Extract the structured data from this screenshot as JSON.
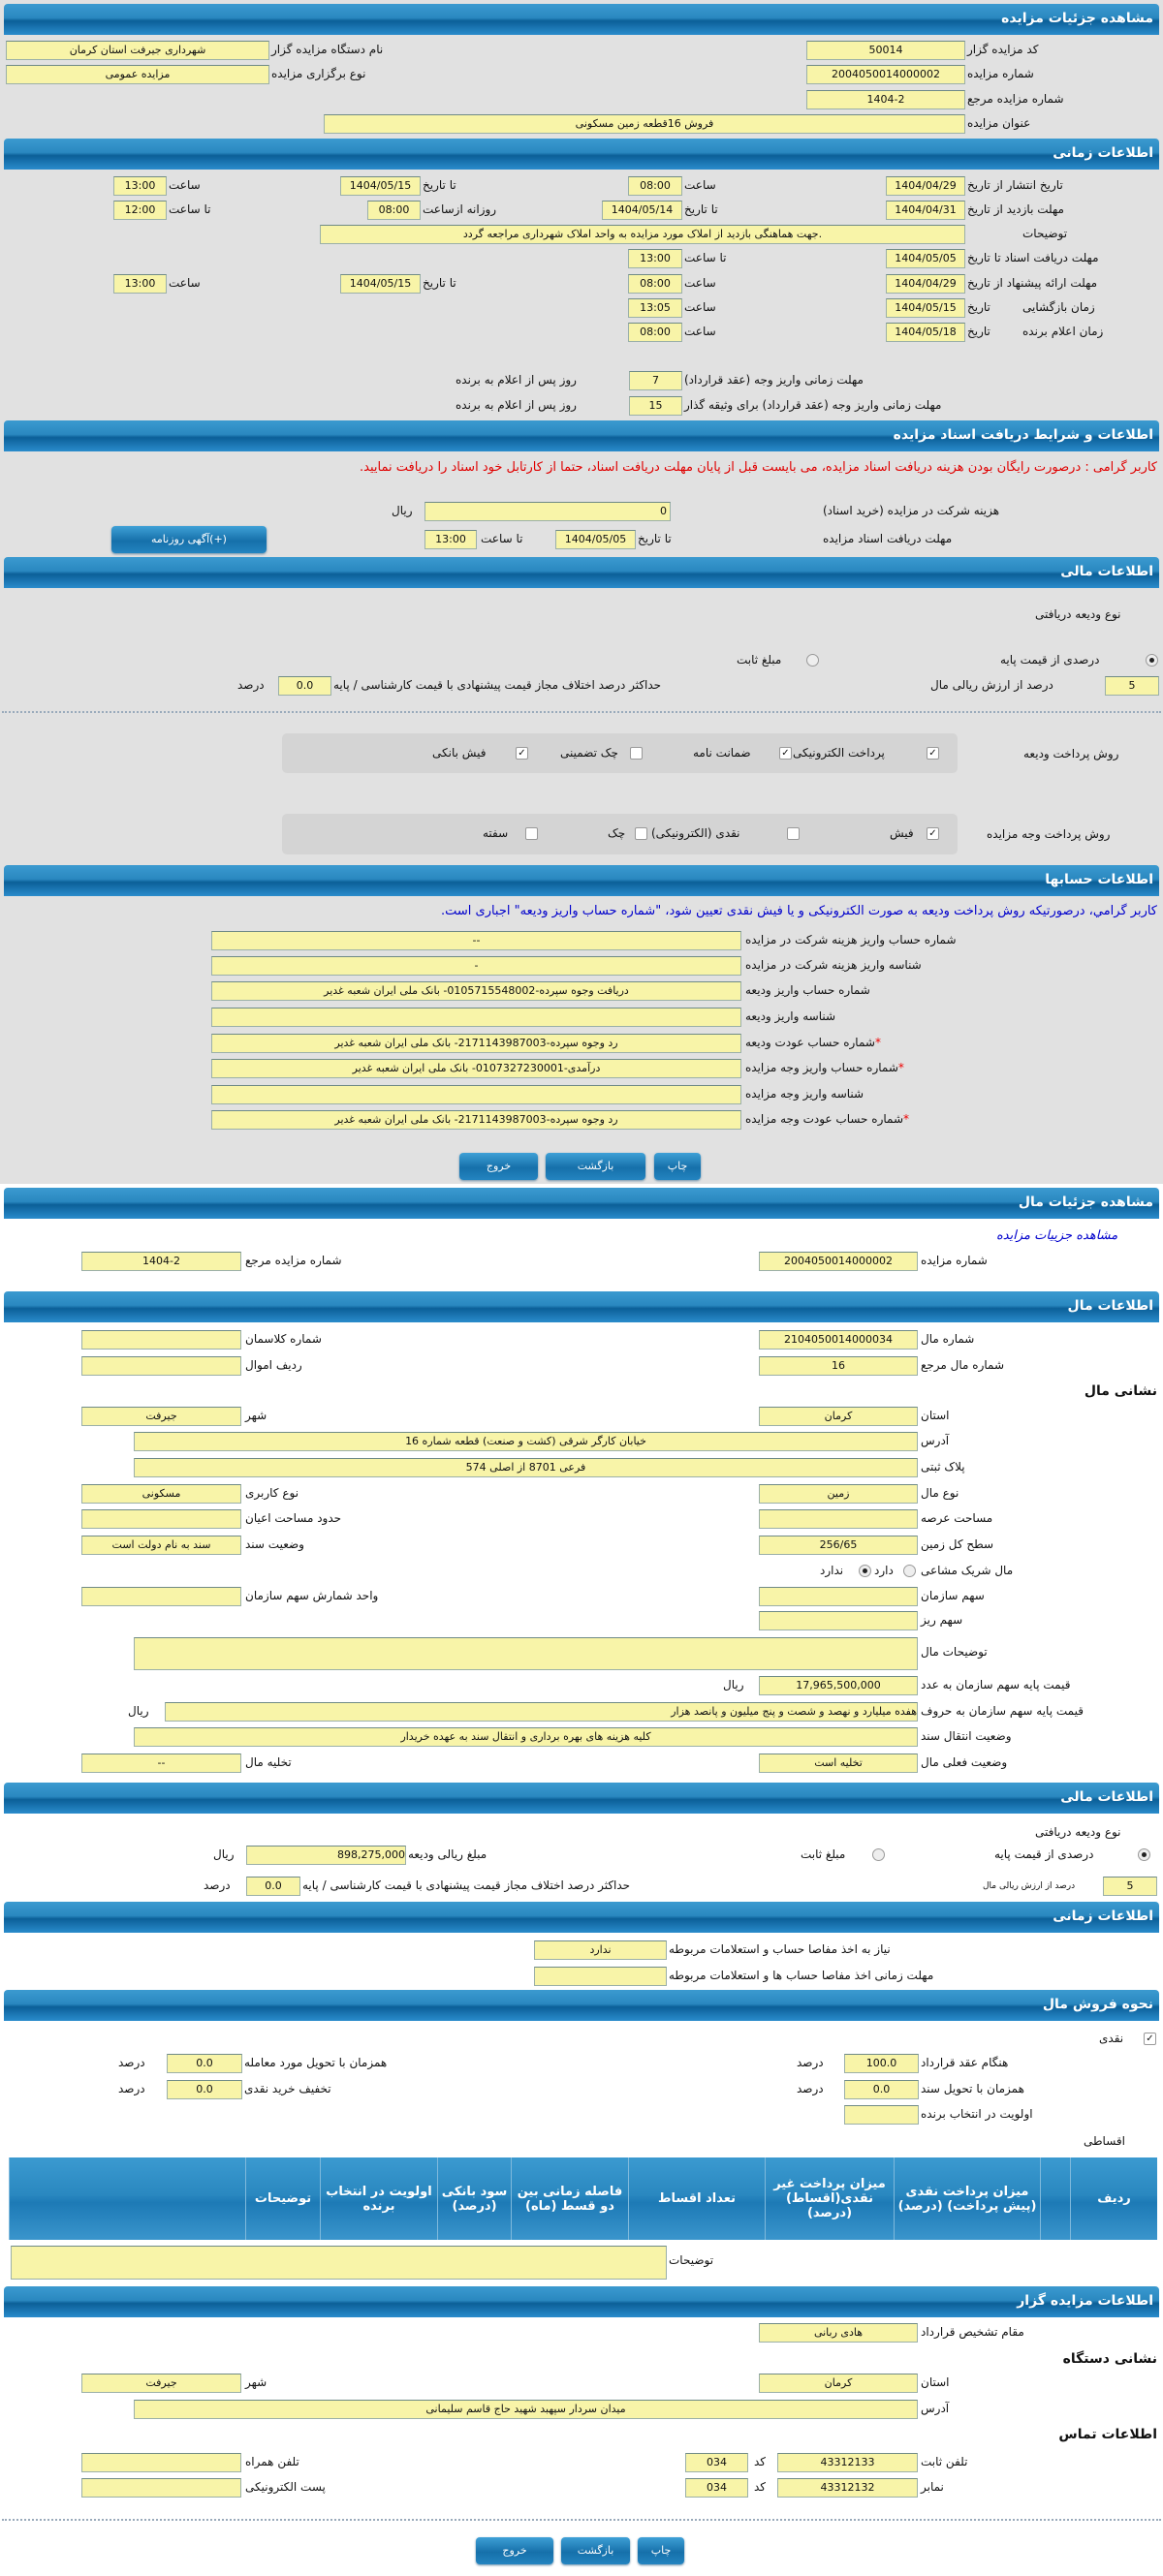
{
  "colors": {
    "header": "#1a78b4",
    "field": "#f8f4a8",
    "page_gray": "#e1e1e1",
    "warning": "#e00000",
    "note": "#0000cc"
  },
  "auction": {
    "title": "مشاهده جزئیات مزایده",
    "code_label": "کد مزایده گزار",
    "code": "50014",
    "org_label": "نام دستگاه مزایده گزار",
    "org": "شهرداری جیرفت استان کرمان",
    "number_label": "شماره مزایده",
    "number": "2004050014000002",
    "type_label": "نوع برگزاری مزایده",
    "type": "مزایده عمومی",
    "ref_label": "شماره مزایده مرجع",
    "ref": "1404-2",
    "subject_label": "عنوان مزایده",
    "subject": "فروش 16قطعه زمین مسکونی"
  },
  "timing": {
    "title": "اطلاعات زمانی",
    "publish": {
      "label": "تاریخ انتشار از تاریخ",
      "from": "1404/04/29",
      "time_label": "ساعت",
      "time": "08:00",
      "to_label": "تا تاریخ",
      "to": "1404/05/15",
      "time2_label": "ساعت",
      "time2": "13:00"
    },
    "visit": {
      "label": "مهلت بازدید از تاریخ",
      "from": "1404/04/31",
      "to_label": "تا تاریخ",
      "to": "1404/05/14",
      "daily_label": "روزانه ازساعت",
      "daily_from": "08:00",
      "until_label": "تا ساعت",
      "daily_to": "12:00"
    },
    "desc_label": "توضیحات",
    "desc": ".جهت هماهنگی بازدید از املاک مورد مزایده به واحد املاک شهرداری مراجعه گردد",
    "docs": {
      "label": "مهلت دریافت اسناد تا تاریخ",
      "date": "1404/05/05",
      "time_label": "تا ساعت",
      "time": "13:00"
    },
    "offer": {
      "label": "مهلت ارائه پیشنهاد از تاریخ",
      "from": "1404/04/29",
      "time_label": "ساعت",
      "time": "08:00",
      "to_label": "تا تاریخ",
      "to": "1404/05/15",
      "time2_label": "ساعت",
      "time2": "13:00"
    },
    "opening": {
      "label": "زمان بازگشایی",
      "date_label": "تاریخ",
      "date": "1404/05/15",
      "time_label": "ساعت",
      "time": "13:05"
    },
    "winner": {
      "label": "زمان اعلام برنده",
      "date_label": "تاریخ",
      "date": "1404/05/18",
      "time_label": "ساعت",
      "time": "08:00"
    },
    "deposit1": {
      "label": "مهلت زمانی واریز وجه (عقد قرارداد)",
      "value": "7",
      "suffix": "روز پس از اعلام به برنده"
    },
    "deposit2": {
      "label": "مهلت زمانی واریز وجه (عقد قرارداد) برای وثیقه گذار",
      "value": "15",
      "suffix": "روز پس از اعلام به برنده"
    }
  },
  "documents": {
    "title": "اطلاعات و شرایط دریافت اسناد مزایده",
    "warning": "کاربر گرامی : درصورت رایگان بودن هزینه دریافت اسناد مزایده، می بایست قبل از پایان مهلت دریافت اسناد، حتما از کارتابل خود اسناد را دریافت نمایید.",
    "fee_label": "هزینه شرکت در مزایده (خرید اسناد)",
    "fee": "0",
    "fee_unit": "ریال",
    "deadline_label": "مهلت دریافت اسناد مزایده",
    "to_label": "تا تاریخ",
    "date": "1404/05/05",
    "time_label": "تا ساعت",
    "time": "13:00",
    "ad_button": "آگهی روزنامه(+)"
  },
  "finance": {
    "title": "اطلاعات مالی",
    "deposit_type_label": "نوع ودیعه دریافتی",
    "percent_option": "درصدی از قیمت پایه",
    "fixed_option": "مبلغ ثابت",
    "selected": "percent",
    "percent": "5",
    "percent_label": "درصد از ارزش ریالی مال",
    "max_diff_label": "حداکثر درصد اختلاف مجاز قیمت پیشنهادی با قیمت کارشناسی / پایه",
    "max_diff": "0.0",
    "percent_unit": "درصد",
    "deposit_pay_label": "روش پرداخت ودیعه",
    "deposit_methods": [
      {
        "label": "پرداخت الکترونیکی",
        "checked": true
      },
      {
        "label": "ضمانت نامه",
        "checked": true
      },
      {
        "label": "چک تضمینی",
        "checked": false
      },
      {
        "label": "فیش بانکی",
        "checked": true
      }
    ],
    "auction_pay_label": "روش پرداخت وجه مزایده",
    "auction_methods": [
      {
        "label": "فیش",
        "checked": true
      },
      {
        "label": "نقدی (الکترونیکی)",
        "checked": false
      },
      {
        "label": "چک",
        "checked": false
      },
      {
        "label": "سفته",
        "checked": false
      }
    ]
  },
  "accounts": {
    "title": "اطلاعات حسابها",
    "note": "کاربر گرامي، درصورتيکه روش پرداخت وديعه به صورت الکترونيکی و يا فيش نقدی تعيين شود، \"شماره حساب واريز وديعه\" اجباری است.",
    "rows": [
      {
        "label": "شماره حساب واریز هزینه شرکت در مزایده",
        "value": "--",
        "required": ""
      },
      {
        "label": "شناسه واریز هزینه شرکت در مزایده",
        "value": "-",
        "required": ""
      },
      {
        "label": "شماره حساب واریز ودیعه",
        "value": "دریافت وجوه سپرده-0105715548002- بانک ملی ایران شعبه غدیر",
        "required": ""
      },
      {
        "label": "شناسه واریز ودیعه",
        "value": "",
        "required": ""
      },
      {
        "label": "شماره حساب عودت ودیعه",
        "value": "رد وجوه سپرده-2171143987003- بانک ملی ایران شعبه غدیر",
        "required": "*"
      },
      {
        "label": "شماره حساب واریز وجه مزایده",
        "value": "درآمدی-0107327230001- بانک ملی ایران شعبه غدیر",
        "required": "*"
      },
      {
        "label": "شناسه واریز وجه مزایده",
        "value": "",
        "required": ""
      },
      {
        "label": "شماره حساب عودت وجه مزایده",
        "value": "رد وجوه سپرده-2171143987003- بانک ملی ایران شعبه غدیر",
        "required": "*"
      }
    ]
  },
  "buttons": {
    "print": "چاپ",
    "back": "بازگشت",
    "exit": "خروج"
  },
  "item": {
    "title": "مشاهده جزئیات مال",
    "link": "مشاهده جزییات مزایده",
    "number_label": "شماره مزایده",
    "number": "2004050014000002",
    "ref_label": "شماره مزایده مرجع",
    "ref": "1404-2",
    "info_title": "اطلاعات مال",
    "item_no_label": "شماره مال",
    "item_no": "2104050014000034",
    "class_label": "شماره کلاسمان",
    "class_no": "",
    "item_ref_label": "شماره مال مرجع",
    "item_ref": "16",
    "row_label": "ردیف اموال",
    "row_no": "",
    "address_title": "نشانی مال",
    "province_label": "استان",
    "province": "کرمان",
    "city_label": "شهر",
    "city": "جیرفت",
    "address_label": "آدرس",
    "address": "خیابان کارگر شرقی (کشت و صنعت) قطعه شماره 16",
    "plate_label": "پلاک ثبتی",
    "plate": "فرعی 8701 از اصلی 574",
    "kind_label": "نوع مال",
    "kind": "زمین",
    "usage_label": "نوع کاربری",
    "usage": "مسکونی",
    "area_label": "مساحت عرصه",
    "area": "",
    "building_label": "حدود مساحت اعیان",
    "building": "",
    "land_label": "سطح کل زمین",
    "land": "256/65",
    "deed_label": "وضعیت سند",
    "deed": "سند به نام دولت است",
    "shared_label": "مال شریک مشاعی",
    "has": "دارد",
    "has_not": "ندارد",
    "shared": "ندارد",
    "share_label": "سهم سازمان",
    "share": "",
    "share_unit_label": "واحد شمارش سهم سازمان",
    "share_unit": "",
    "fine_label": "سهم ریز",
    "fine": "",
    "desc_label": "توضیحات مال",
    "desc": "",
    "price_label": "قیمت پایه سهم سازمان به عدد",
    "price": "17,965,500,000",
    "price_unit": "ریال",
    "price_words_label": "قیمت پایه سهم سازمان به حروف",
    "price_words": "هفده میلیارد و نهصد و شصت و پنج میلیون و پانصد هزار",
    "transfer_label": "وضعیت انتقال سند",
    "transfer": "کلیه هزینه های بهره برداری و انتقال سند به عهده خریدار",
    "status_label": "وضعیت فعلی مال",
    "status": "تخلیه است",
    "evac_label": "تخلیه مال",
    "evac": "--"
  },
  "item_finance": {
    "title": "اطلاعات مالی",
    "deposit_type_label": "نوع ودیعه دریافتی",
    "percent_option": "درصدی از قیمت پایه",
    "fixed_option": "مبلغ ثابت",
    "selected": "percent",
    "amount_label": "مبلغ ریالی ودیعه",
    "amount": "898,275,000",
    "amount_unit": "ریال",
    "percent": "5",
    "percent_label": "درصد از ارزش ریالی مال",
    "max_diff_label": "حداکثر درصد اختلاف مجاز قیمت پیشنهادی با قیمت کارشناسی / پایه",
    "max_diff": "0.0",
    "percent_unit": "درصد"
  },
  "item_timing": {
    "title": "اطلاعات زمانی",
    "clearance_label": "نیاز به اخذ مفاصا حساب و استعلامات مربوطه",
    "clearance": "ندارد",
    "clearance_deadline_label": "مهلت زمانی اخذ مفاصا حساب ها و استعلامات مربوطه",
    "clearance_deadline": ""
  },
  "sale": {
    "title": "نحوه فروش مال",
    "cash_label": "نقدی",
    "cash_checked": true,
    "contract_label": "هنگام عقد قرارداد",
    "contract": "100.0",
    "delivery_label": "همزمان با تحویل مورد معامله",
    "delivery": "0.0",
    "deed_label": "همزمان با تحویل سند",
    "deed": "0.0",
    "discount_label": "تخفیف خرید نقدی",
    "discount": "0.0",
    "priority_label": "اولویت در انتخاب برنده",
    "priority": "",
    "unit": "درصد",
    "installment_label": "اقساطی",
    "columns": [
      "ردیف",
      "",
      "میزان پرداخت نقدی (پیش پرداخت) (درصد)",
      "میزان پرداخت غیر نقدی(اقساط) (درصد)",
      "تعداد اقساط",
      "فاصله زمانی بین دو قسط (ماه)",
      "سود بانکی (درصد)",
      "اولویت در انتخاب برنده",
      "توضیحات",
      ""
    ],
    "notes_label": "توضیحات",
    "notes": ""
  },
  "auctioneer": {
    "title": "اطلاعات مزایده گزار",
    "authority_label": "مقام تشخیص قرارداد",
    "authority": "هادی ربانی",
    "address_title": "نشانی دستگاه",
    "province_label": "استان",
    "province": "کرمان",
    "city_label": "شهر",
    "city": "جیرفت",
    "address_label": "آدرس",
    "address": "میدان سردار سپهبد شهید حاج قاسم سلیمانی",
    "contact_title": "اطلاعات تماس",
    "phone_label": "تلفن ثابت",
    "phone": "43312133",
    "code_label": "کد",
    "phone_code": "034",
    "mobile_label": "تلفن همراه",
    "mobile": "",
    "fax_label": "نمابر",
    "fax": "43312132",
    "fax_code": "034",
    "email_label": "پست الکترونیکی",
    "email": ""
  }
}
